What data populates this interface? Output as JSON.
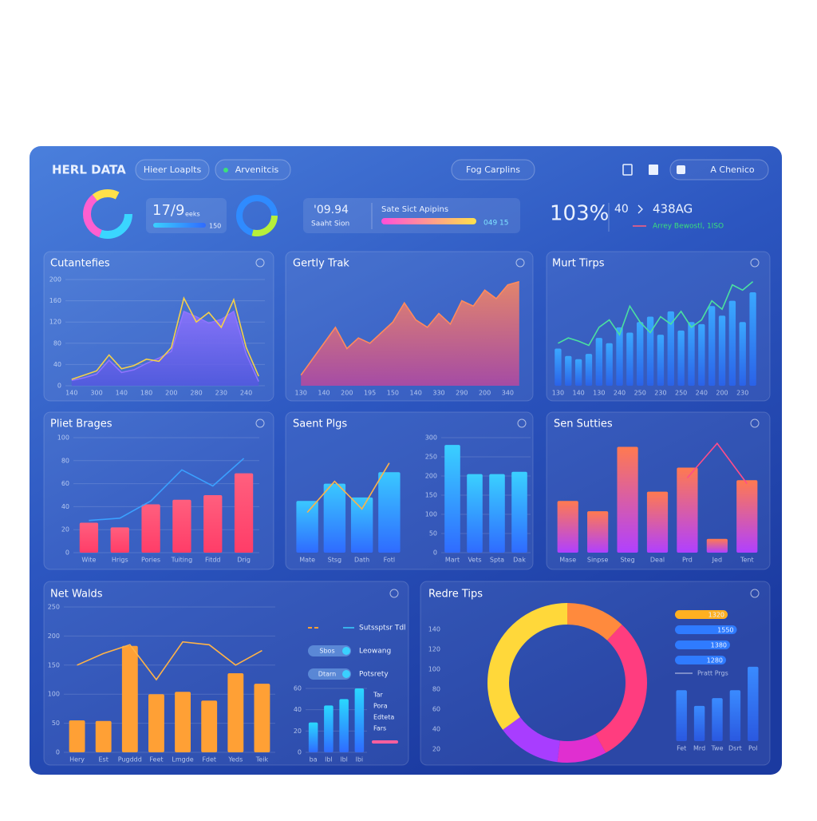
{
  "header": {
    "title": "HERL DATA",
    "tabs": [
      "Hieer Loaplts",
      "Arvenitcis"
    ],
    "center_tab": "Fog Carplins",
    "user": "A Chenico"
  },
  "kpis": {
    "value1": "17/9",
    "value1_sub": "eeks",
    "value1_foot": "150",
    "value2": "'09.94",
    "value2_sub": "Saaht Sion",
    "progress_label": "Sate Sict Apipins",
    "progress_value": "049 15",
    "big": "103%",
    "compare_a": "40",
    "compare_b": "438AG",
    "trend": "Arrey Bewostl, 1ISO"
  },
  "chart_data": [
    {
      "type": "combo",
      "title": "Cutantefies",
      "categories": [
        "140",
        null,
        "300",
        null,
        "140",
        null,
        "180",
        null,
        "200",
        null,
        "280",
        null,
        "230",
        null,
        "240",
        null
      ],
      "series": [
        {
          "type": "area",
          "color": [
            "#8f73ff",
            "#5458e0"
          ],
          "values": [
            10,
            15,
            22,
            48,
            25,
            30,
            42,
            52,
            65,
            140,
            130,
            118,
            125,
            140,
            60,
            8
          ]
        },
        {
          "type": "line",
          "color": "#f5d04a",
          "values": [
            12,
            20,
            28,
            58,
            32,
            38,
            50,
            46,
            72,
            165,
            120,
            138,
            110,
            162,
            72,
            18
          ]
        }
      ],
      "ylim": [
        0,
        200
      ],
      "yticks": [
        0,
        40,
        80,
        120,
        160,
        200
      ]
    },
    {
      "type": "area",
      "title": "Gertly Trak",
      "categories": [
        "130",
        null,
        "140",
        null,
        "200",
        null,
        "195",
        null,
        "150",
        null,
        "140",
        null,
        "330",
        null,
        "290",
        null,
        "200",
        null,
        "340",
        null
      ],
      "values": [
        10,
        25,
        40,
        55,
        35,
        45,
        40,
        50,
        60,
        78,
        62,
        55,
        68,
        58,
        80,
        75,
        90,
        82,
        95,
        98
      ],
      "color": [
        "#ff8a5c",
        "#b8489f"
      ],
      "ylim": [
        0,
        100
      ]
    },
    {
      "type": "combo",
      "title": "Murt Tirps",
      "categories": [
        "130",
        null,
        "140",
        null,
        "130",
        null,
        "240",
        null,
        "250",
        null,
        "230",
        null,
        "250",
        null,
        "240",
        null,
        "200",
        null,
        "230",
        null
      ],
      "series": [
        {
          "type": "bar",
          "color": [
            "#3aa8ff",
            "#2a62e8"
          ],
          "values": [
            35,
            28,
            25,
            30,
            45,
            40,
            55,
            50,
            60,
            65,
            48,
            70,
            52,
            60,
            58,
            75,
            66,
            80,
            60,
            88
          ]
        },
        {
          "type": "line",
          "color": "#4be0a0",
          "values": [
            40,
            45,
            42,
            38,
            55,
            62,
            48,
            75,
            60,
            50,
            65,
            58,
            70,
            55,
            62,
            80,
            72,
            95,
            90,
            98
          ]
        }
      ],
      "ylim": [
        0,
        100
      ]
    },
    {
      "type": "combo",
      "title": "Pliet Brages",
      "categories": [
        "Wite",
        "Hrigs",
        "Pories",
        "Tuiting",
        "Fitdd",
        "Drig"
      ],
      "series": [
        {
          "type": "bar",
          "color": [
            "#ff5f7e",
            "#ff3d68"
          ],
          "values": [
            26,
            22,
            42,
            46,
            50,
            69
          ]
        },
        {
          "type": "line",
          "color": "#3aa0ff",
          "values": [
            28,
            30,
            45,
            72,
            58,
            82
          ]
        }
      ],
      "ylim": [
        0,
        100
      ],
      "yticks": [
        0,
        20,
        40,
        60,
        80,
        100
      ]
    },
    {
      "type": "combo",
      "title": "Saent Plgs",
      "categories": [
        "Mate",
        "Stsg",
        "Dath",
        "Fotl"
      ],
      "series": [
        {
          "type": "bar",
          "color": [
            "#3ac8ff",
            "#2f6bff"
          ],
          "values": [
            45,
            60,
            48,
            70
          ]
        },
        {
          "type": "line",
          "color": "#ffb347",
          "values": [
            35,
            62,
            38,
            78
          ]
        }
      ],
      "ylim": [
        0,
        100
      ]
    },
    {
      "type": "bar",
      "categories": [
        "Mart",
        "Vets",
        "Spta",
        "Dak"
      ],
      "values": [
        281,
        205,
        205,
        211
      ],
      "color": [
        "#3ad0ff",
        "#2f6bff"
      ],
      "ylim": [
        0,
        300
      ],
      "yticks": [
        0,
        50,
        100,
        150,
        200,
        250,
        300
      ]
    },
    {
      "type": "combo",
      "title": "Sen Sutties",
      "categories": [
        "Mase",
        "Sinpse",
        "Steg",
        "Deal",
        "Prd",
        "Jed",
        "Tent"
      ],
      "series": [
        {
          "type": "bar",
          "color": [
            "#ff7a50",
            "#b040ff"
          ],
          "values": [
            45,
            36,
            92,
            53,
            74,
            12,
            63
          ]
        },
        {
          "type": "line",
          "color": "#ff4d8a",
          "values": [
            null,
            null,
            null,
            null,
            65,
            95,
            60
          ]
        }
      ],
      "ylim": [
        0,
        100
      ]
    },
    {
      "type": "combo",
      "title": "Net Walds",
      "categories": [
        "Hery",
        "Est",
        "Pugddd",
        "Feet",
        "Lmgde",
        "Fdet",
        "Yeds",
        "Teik"
      ],
      "series": [
        {
          "type": "bar",
          "color": "#ffa035",
          "values": [
            55,
            54,
            183,
            100,
            104,
            89,
            136,
            118
          ]
        },
        {
          "type": "line",
          "color": "#ffb347",
          "values": [
            150,
            170,
            185,
            125,
            190,
            185,
            150,
            175
          ]
        }
      ],
      "ylim": [
        0,
        250
      ],
      "yticks": [
        0,
        50,
        100,
        150,
        200,
        250
      ],
      "legend": [
        {
          "label": "Sutssptsr Tdl"
        },
        {
          "pill": "Sbos",
          "label": "Leowang"
        },
        {
          "pill": "Dtarn",
          "label": "Potsrety"
        }
      ]
    },
    {
      "type": "bar",
      "categories": [
        "ba",
        "lbl",
        "lbl",
        "lbi"
      ],
      "values": [
        28,
        44,
        50,
        60
      ],
      "color": [
        "#2ad8ff",
        "#2f6bff"
      ],
      "ylim": [
        0,
        60
      ],
      "yticks": [
        0,
        20,
        40,
        60
      ],
      "legend": [
        "Tar",
        "Pora",
        "Edteta",
        "Fars"
      ]
    },
    {
      "type": "pie",
      "title": "Redre Tips",
      "values": [
        12,
        30,
        10,
        13,
        35
      ],
      "colors": [
        "#ff8a3d",
        "#ff3d7f",
        "#e02fd0",
        "#a83dff",
        "#ffd83a"
      ],
      "side_labels": [
        "140",
        "120",
        "100",
        "80",
        "60",
        "40",
        "20"
      ]
    },
    {
      "type": "hbar",
      "values": [
        1320,
        1550,
        1380,
        1280
      ],
      "colors": [
        "#ffb020",
        "#2f7bff",
        "#2f7bff",
        "#2f7bff"
      ],
      "xlim": [
        0,
        1600
      ],
      "note": "Pratt Prgs"
    },
    {
      "type": "bar",
      "categories": [
        "Fet",
        "Mrd",
        "Twe",
        "Dsrt",
        "Pol"
      ],
      "values": [
        65,
        45,
        55,
        65,
        95
      ],
      "color": [
        "#3a8bff",
        "#2a58e0"
      ],
      "ylim": [
        0,
        100
      ]
    }
  ]
}
